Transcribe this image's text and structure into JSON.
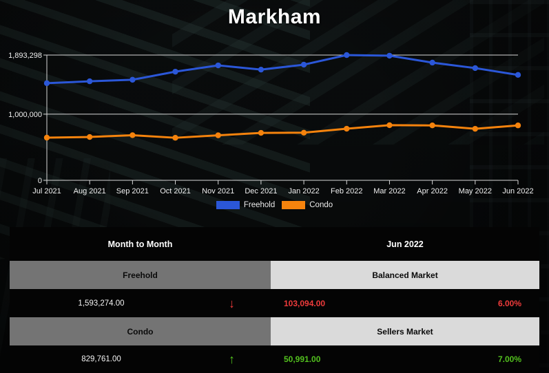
{
  "title": "Markham",
  "chart_data": {
    "type": "line",
    "title": "Markham",
    "x": [
      "Jul 2021",
      "Aug 2021",
      "Sep 2021",
      "Oct 2021",
      "Nov 2021",
      "Dec 2021",
      "Jan 2022",
      "Feb 2022",
      "Mar 2022",
      "Apr 2022",
      "May 2022",
      "Jun 2022"
    ],
    "series": [
      {
        "name": "Freehold",
        "color": "#2b57d8",
        "values": [
          1468000,
          1497000,
          1520000,
          1642000,
          1737000,
          1673000,
          1748000,
          1893298,
          1884000,
          1779000,
          1696368,
          1593274
        ]
      },
      {
        "name": "Condo",
        "color": "#f5830d",
        "values": [
          645000,
          655000,
          682000,
          643000,
          680000,
          717000,
          720000,
          780000,
          833000,
          830000,
          778770,
          829761
        ]
      }
    ],
    "yticks": [
      {
        "value": 1893298,
        "label": "1,893,298"
      },
      {
        "value": 1000000,
        "label": "1,000,000"
      },
      {
        "value": 0,
        "label": "0"
      }
    ],
    "ylim": [
      0,
      1893298
    ],
    "grid": true,
    "legend_position": "bottom",
    "axis_color": "#d9d9d9",
    "label_color": "#f0f0f0"
  },
  "table": {
    "period_header": {
      "left": "Month to Month",
      "right": "Jun 2022"
    },
    "freehold": {
      "label": "Freehold",
      "market_status": "Balanced Market",
      "price": "1,593,274.00",
      "arrow": "↓",
      "change": "103,094.00",
      "percent": "6.00%",
      "trend": "down",
      "trend_color": "#ee3b3b"
    },
    "condo": {
      "label": "Condo",
      "market_status": "Sellers Market",
      "price": "829,761.00",
      "arrow": "↑",
      "change": "50,991.00",
      "percent": "7.00%",
      "trend": "up",
      "trend_color": "#52c01e"
    }
  }
}
